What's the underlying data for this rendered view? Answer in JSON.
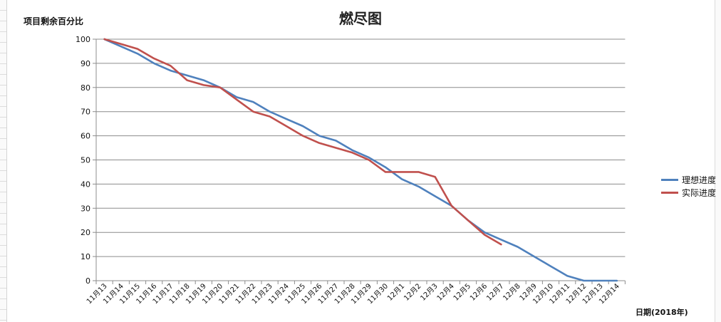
{
  "chart_data": {
    "type": "line",
    "title": "燃尽图",
    "ylabel": "项目剩余百分比",
    "xlabel": "日期(2018年)",
    "ylim": [
      0,
      100
    ],
    "yticks": [
      0,
      10,
      20,
      30,
      40,
      50,
      60,
      70,
      80,
      90,
      100
    ],
    "grid": true,
    "legend_position": "right",
    "categories": [
      "11月13",
      "11月14",
      "11月15",
      "11月16",
      "11月17",
      "11月18",
      "11月19",
      "11月20",
      "11月21",
      "11月22",
      "11月23",
      "11月24",
      "11月25",
      "11月26",
      "11月27",
      "11月28",
      "11月29",
      "11月30",
      "12月1",
      "12月2",
      "12月3",
      "12月4",
      "12月5",
      "12月6",
      "12月7",
      "12月8",
      "12月9",
      "12月10",
      "12月11",
      "12月12",
      "12月13",
      "12月14"
    ],
    "series": [
      {
        "name": "理想进度",
        "color": "#4f81bd",
        "values": [
          100,
          97,
          94,
          90,
          87,
          85,
          83,
          80,
          76,
          74,
          70,
          67,
          64,
          60,
          58,
          54,
          51,
          47,
          42,
          39,
          35,
          31,
          25,
          20,
          17,
          14,
          10,
          6,
          2,
          0,
          0,
          0
        ]
      },
      {
        "name": "实际进度",
        "color": "#c0504d",
        "values": [
          100,
          98,
          96,
          92,
          89,
          83,
          81,
          80,
          75,
          70,
          68,
          64,
          60,
          57,
          55,
          53,
          50,
          45,
          45,
          45,
          43,
          31,
          25,
          19,
          15,
          null,
          null,
          null,
          null,
          null,
          null,
          null
        ]
      }
    ]
  }
}
